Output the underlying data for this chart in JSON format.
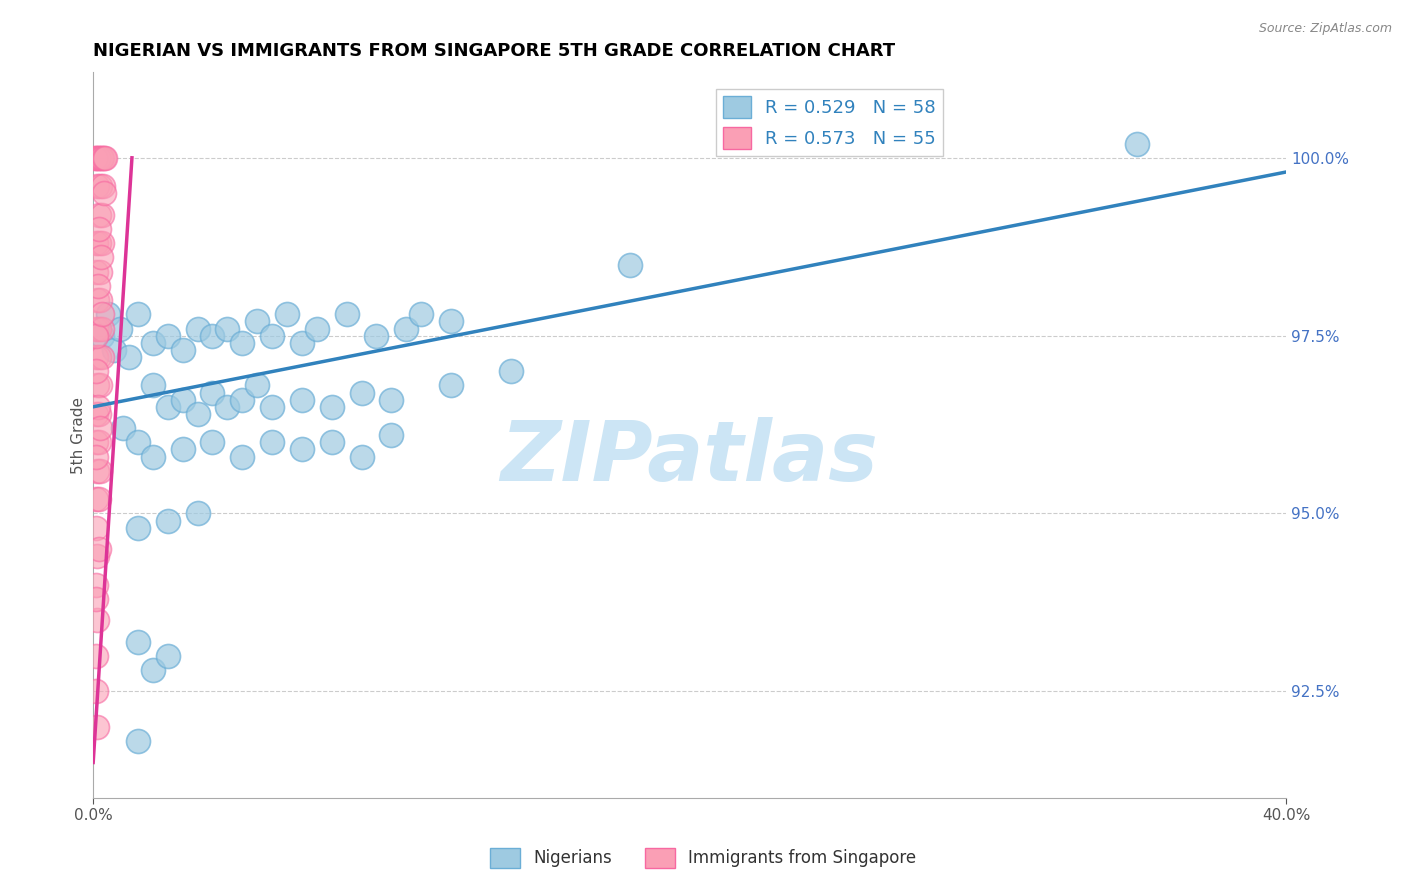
{
  "title": "NIGERIAN VS IMMIGRANTS FROM SINGAPORE 5TH GRADE CORRELATION CHART",
  "source": "Source: ZipAtlas.com",
  "ylabel": "5th Grade",
  "legend_r_blue": "R = 0.529",
  "legend_n_blue": "N = 58",
  "legend_r_pink": "R = 0.573",
  "legend_n_pink": "N = 55",
  "legend_label_blue": "Nigerians",
  "legend_label_pink": "Immigrants from Singapore",
  "scatter_blue": [
    [
      0.3,
      97.5
    ],
    [
      0.5,
      97.8
    ],
    [
      0.7,
      97.3
    ],
    [
      0.9,
      97.6
    ],
    [
      1.2,
      97.2
    ],
    [
      1.5,
      97.8
    ],
    [
      2.0,
      97.4
    ],
    [
      2.5,
      97.5
    ],
    [
      3.0,
      97.3
    ],
    [
      3.5,
      97.6
    ],
    [
      4.0,
      97.5
    ],
    [
      4.5,
      97.6
    ],
    [
      5.0,
      97.4
    ],
    [
      5.5,
      97.7
    ],
    [
      6.0,
      97.5
    ],
    [
      6.5,
      97.8
    ],
    [
      7.0,
      97.4
    ],
    [
      7.5,
      97.6
    ],
    [
      8.5,
      97.8
    ],
    [
      9.5,
      97.5
    ],
    [
      10.5,
      97.6
    ],
    [
      11.0,
      97.8
    ],
    [
      12.0,
      97.7
    ],
    [
      2.0,
      96.8
    ],
    [
      2.5,
      96.5
    ],
    [
      3.0,
      96.6
    ],
    [
      3.5,
      96.4
    ],
    [
      4.0,
      96.7
    ],
    [
      4.5,
      96.5
    ],
    [
      5.0,
      96.6
    ],
    [
      5.5,
      96.8
    ],
    [
      6.0,
      96.5
    ],
    [
      7.0,
      96.6
    ],
    [
      8.0,
      96.5
    ],
    [
      9.0,
      96.7
    ],
    [
      10.0,
      96.6
    ],
    [
      12.0,
      96.8
    ],
    [
      14.0,
      97.0
    ],
    [
      1.0,
      96.2
    ],
    [
      1.5,
      96.0
    ],
    [
      2.0,
      95.8
    ],
    [
      3.0,
      95.9
    ],
    [
      4.0,
      96.0
    ],
    [
      5.0,
      95.8
    ],
    [
      6.0,
      96.0
    ],
    [
      7.0,
      95.9
    ],
    [
      8.0,
      96.0
    ],
    [
      9.0,
      95.8
    ],
    [
      10.0,
      96.1
    ],
    [
      1.5,
      94.8
    ],
    [
      2.5,
      94.9
    ],
    [
      3.5,
      95.0
    ],
    [
      1.5,
      93.2
    ],
    [
      2.0,
      92.8
    ],
    [
      2.5,
      93.0
    ],
    [
      1.5,
      91.8
    ],
    [
      35.0,
      100.2
    ],
    [
      18.0,
      98.5
    ]
  ],
  "scatter_pink": [
    [
      0.05,
      100.0
    ],
    [
      0.1,
      100.0
    ],
    [
      0.15,
      100.0
    ],
    [
      0.2,
      100.0
    ],
    [
      0.25,
      100.0
    ],
    [
      0.3,
      100.0
    ],
    [
      0.35,
      100.0
    ],
    [
      0.4,
      100.0
    ],
    [
      0.12,
      99.6
    ],
    [
      0.22,
      99.6
    ],
    [
      0.32,
      99.6
    ],
    [
      0.18,
      99.2
    ],
    [
      0.28,
      99.2
    ],
    [
      0.08,
      98.8
    ],
    [
      0.2,
      98.8
    ],
    [
      0.3,
      98.8
    ],
    [
      0.1,
      98.4
    ],
    [
      0.22,
      98.4
    ],
    [
      0.14,
      98.0
    ],
    [
      0.24,
      98.0
    ],
    [
      0.08,
      97.6
    ],
    [
      0.18,
      97.6
    ],
    [
      0.28,
      97.6
    ],
    [
      0.1,
      97.2
    ],
    [
      0.2,
      97.2
    ],
    [
      0.3,
      97.2
    ],
    [
      0.12,
      96.8
    ],
    [
      0.22,
      96.8
    ],
    [
      0.08,
      96.4
    ],
    [
      0.18,
      96.4
    ],
    [
      0.1,
      96.0
    ],
    [
      0.2,
      96.0
    ],
    [
      0.12,
      95.6
    ],
    [
      0.22,
      95.6
    ],
    [
      0.08,
      95.2
    ],
    [
      0.18,
      95.2
    ],
    [
      0.1,
      94.8
    ],
    [
      0.14,
      94.4
    ],
    [
      0.1,
      94.0
    ],
    [
      0.12,
      93.5
    ],
    [
      0.08,
      93.0
    ],
    [
      0.1,
      92.5
    ],
    [
      0.12,
      92.0
    ],
    [
      0.08,
      97.5
    ],
    [
      0.35,
      99.5
    ],
    [
      0.18,
      99.0
    ],
    [
      0.25,
      98.6
    ],
    [
      0.3,
      97.8
    ],
    [
      0.15,
      96.5
    ],
    [
      0.1,
      95.8
    ],
    [
      0.2,
      94.5
    ],
    [
      0.15,
      98.2
    ],
    [
      0.08,
      97.0
    ],
    [
      0.22,
      96.2
    ],
    [
      0.1,
      93.8
    ]
  ],
  "blue_line": [
    [
      0.0,
      96.5
    ],
    [
      40.0,
      99.8
    ]
  ],
  "pink_line": [
    [
      0.0,
      91.5
    ],
    [
      1.3,
      100.0
    ]
  ],
  "xlim": [
    0.0,
    40.0
  ],
  "ylim": [
    91.0,
    101.2
  ],
  "yticks": [
    92.5,
    95.0,
    97.5,
    100.0
  ],
  "dot_size": 300,
  "blue_color": "#9ecae1",
  "pink_color": "#fa9fb5",
  "blue_edge_color": "#6baed6",
  "pink_edge_color": "#f768a1",
  "blue_line_color": "#3182bd",
  "pink_line_color": "#dd3497",
  "background_color": "#ffffff",
  "title_fontsize": 13,
  "watermark_text": "ZIPatlas",
  "watermark_color": "#cce5f5",
  "tick_color": "#4472c4"
}
